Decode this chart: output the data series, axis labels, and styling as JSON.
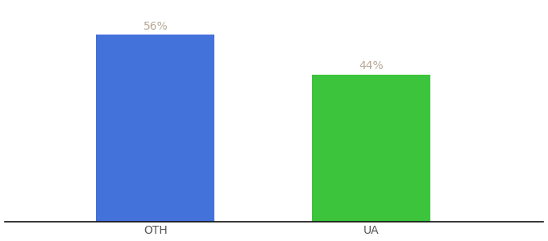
{
  "categories": [
    "OTH",
    "UA"
  ],
  "values": [
    56,
    44
  ],
  "bar_colors": [
    "#4472db",
    "#3dc43d"
  ],
  "label_texts": [
    "56%",
    "44%"
  ],
  "label_color": "#b8a898",
  "tick_color": "#555555",
  "background_color": "#ffffff",
  "bar_width": 0.22,
  "x_positions": [
    0.28,
    0.68
  ],
  "xlim": [
    0.0,
    1.0
  ],
  "ylim": [
    0,
    65
  ],
  "label_fontsize": 10,
  "tick_fontsize": 10
}
